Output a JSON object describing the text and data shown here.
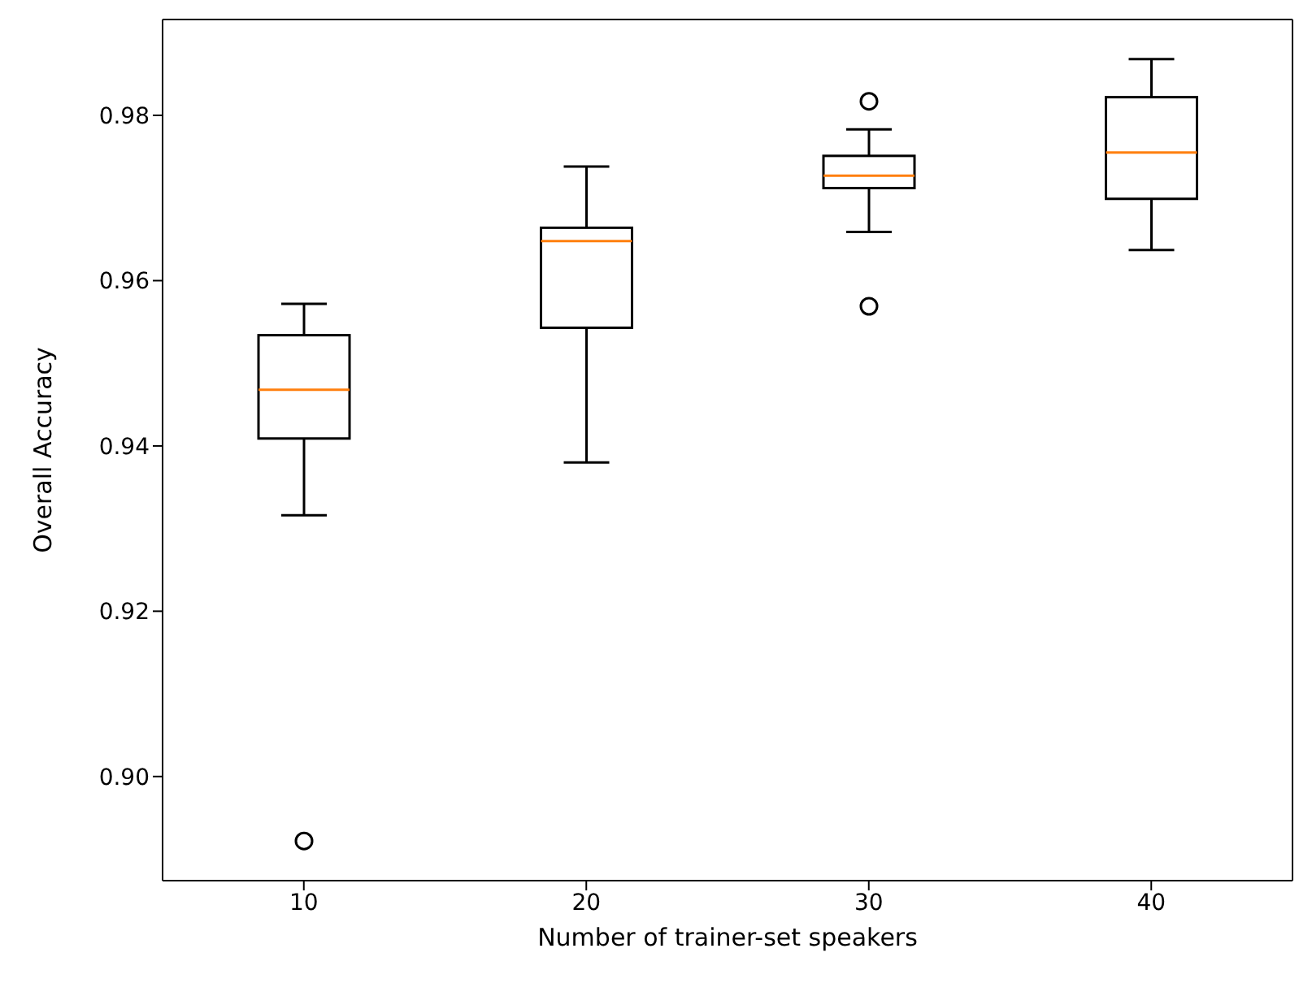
{
  "chart_data": {
    "type": "box",
    "xlabel": "Number of trainer-set speakers",
    "ylabel": "Overall Accuracy",
    "categories": [
      "10",
      "20",
      "30",
      "40"
    ],
    "color": "#000000",
    "boxes": [
      {
        "low": 0.9316,
        "q1": 0.9409,
        "median": 0.9468,
        "q3": 0.9534,
        "high": 0.9572,
        "outliers": [
          0.8922
        ]
      },
      {
        "low": 0.938,
        "q1": 0.9543,
        "median": 0.9648,
        "q3": 0.9664,
        "high": 0.9738
      },
      {
        "low": 0.9659,
        "q1": 0.9712,
        "median": 0.9727,
        "q3": 0.9751,
        "high": 0.9783,
        "outliers": [
          0.9817,
          0.9569
        ]
      },
      {
        "low": 0.9637,
        "q1": 0.9699,
        "median": 0.9755,
        "q3": 0.9822,
        "high": 0.9868
      }
    ],
    "ylim": [
      0.8874,
      0.9916
    ],
    "yticks": [
      {
        "value": 0.9,
        "label": "0.90"
      },
      {
        "value": 0.92,
        "label": "0.92"
      },
      {
        "value": 0.94,
        "label": "0.94"
      },
      {
        "value": 0.96,
        "label": "0.96"
      },
      {
        "value": 0.98,
        "label": "0.98"
      }
    ]
  }
}
